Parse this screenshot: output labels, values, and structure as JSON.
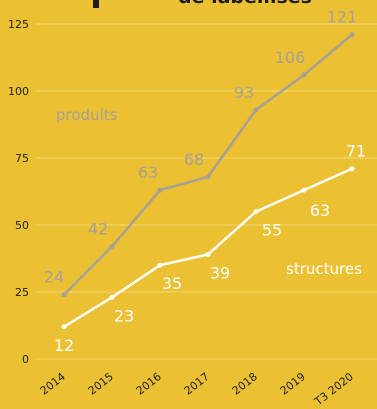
{
  "chart_data": {
    "type": "line",
    "title": "de labellisés",
    "categories": [
      "2014",
      "2015",
      "2016",
      "2017",
      "2018",
      "2019",
      "T3 2020"
    ],
    "series": [
      {
        "name": "produits",
        "values": [
          24,
          42,
          63,
          68,
          93,
          106,
          121
        ],
        "color": "#A6A096"
      },
      {
        "name": "structures",
        "values": [
          12,
          23,
          35,
          39,
          55,
          63,
          71
        ],
        "color": "#FFFFFF"
      }
    ],
    "y_ticks": [
      0,
      25,
      50,
      75,
      100,
      125
    ],
    "ylim": [
      0,
      125
    ],
    "grid": "horizontal",
    "legend": "inline labels",
    "colors": {
      "background": "#EBC033",
      "grid": "#F3D873",
      "tick_text": "#222222"
    }
  }
}
